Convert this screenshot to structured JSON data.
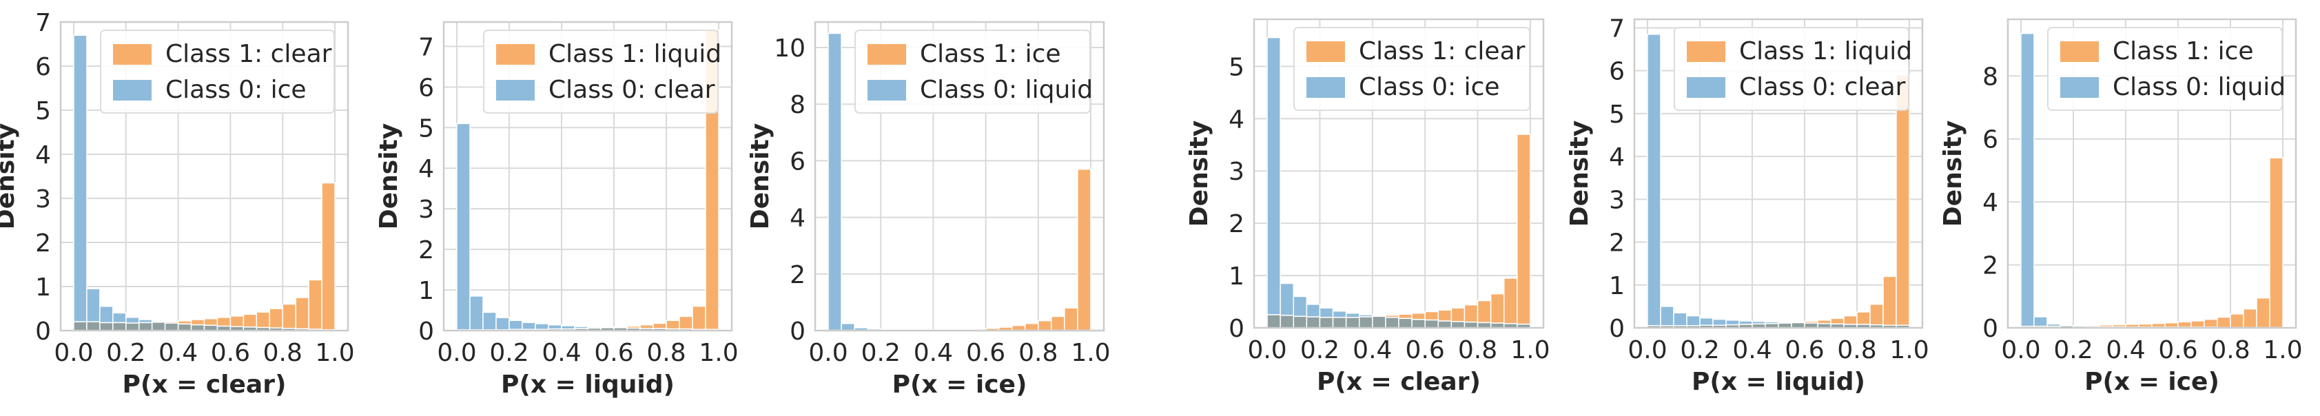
{
  "colors": {
    "class1": "#f7ae6b",
    "class0": "#8ebbdb",
    "overlap": "#8f9f9f",
    "grid": "#d9d9d9",
    "frame": "#cccccc"
  },
  "chart_data": [
    {
      "type": "bar",
      "title": "",
      "xlabel": "P(x = clear)",
      "ylabel": "Density",
      "xlim": [
        0.0,
        1.0
      ],
      "ylim": [
        0,
        7
      ],
      "xticks": [
        "0.0",
        "0.2",
        "0.4",
        "0.6",
        "0.8",
        "1.0"
      ],
      "yticks": [
        "0",
        "1",
        "2",
        "3",
        "4",
        "5",
        "6",
        "7"
      ],
      "legend": [
        "Class 1: clear",
        "Class 0: ice"
      ],
      "bins": 20,
      "series": [
        {
          "name": "Class 1: clear",
          "values": [
            0.2,
            0.2,
            0.18,
            0.18,
            0.17,
            0.18,
            0.19,
            0.2,
            0.22,
            0.25,
            0.27,
            0.3,
            0.33,
            0.37,
            0.42,
            0.5,
            0.6,
            0.75,
            1.15,
            3.35
          ]
        },
        {
          "name": "Class 0: ice",
          "values": [
            6.7,
            0.95,
            0.55,
            0.4,
            0.3,
            0.25,
            0.2,
            0.17,
            0.15,
            0.13,
            0.12,
            0.1,
            0.09,
            0.08,
            0.07,
            0.06,
            0.05,
            0.04,
            0.03,
            0.02
          ]
        }
      ]
    },
    {
      "type": "bar",
      "title": "",
      "xlabel": "P(x = liquid)",
      "ylabel": "Density",
      "xlim": [
        0.0,
        1.0
      ],
      "ylim": [
        0,
        7.6
      ],
      "xticks": [
        "0.0",
        "0.2",
        "0.4",
        "0.6",
        "0.8",
        "1.0"
      ],
      "yticks": [
        "0",
        "1",
        "2",
        "3",
        "4",
        "5",
        "6",
        "7"
      ],
      "legend": [
        "Class 1: liquid",
        "Class 0: clear"
      ],
      "bins": 20,
      "series": [
        {
          "name": "Class 1: liquid",
          "values": [
            0.02,
            0.02,
            0.02,
            0.02,
            0.03,
            0.03,
            0.03,
            0.04,
            0.04,
            0.05,
            0.06,
            0.07,
            0.09,
            0.11,
            0.14,
            0.18,
            0.25,
            0.35,
            0.6,
            7.4
          ]
        },
        {
          "name": "Class 0: clear",
          "values": [
            5.1,
            0.85,
            0.45,
            0.32,
            0.25,
            0.2,
            0.17,
            0.14,
            0.12,
            0.1,
            0.09,
            0.08,
            0.07,
            0.06,
            0.05,
            0.05,
            0.04,
            0.04,
            0.03,
            0.03
          ]
        }
      ]
    },
    {
      "type": "bar",
      "title": "",
      "xlabel": "P(x = ice)",
      "ylabel": "Density",
      "xlim": [
        0.0,
        1.0
      ],
      "ylim": [
        0,
        10.9
      ],
      "xticks": [
        "0.0",
        "0.2",
        "0.4",
        "0.6",
        "0.8",
        "1.0"
      ],
      "yticks": [
        "0",
        "2",
        "4",
        "6",
        "8",
        "10"
      ],
      "legend": [
        "Class 1: ice",
        "Class 0: liquid"
      ],
      "bins": 20,
      "series": [
        {
          "name": "Class 1: ice",
          "values": [
            0.01,
            0.01,
            0.01,
            0.01,
            0.01,
            0.01,
            0.01,
            0.01,
            0.01,
            0.02,
            0.03,
            0.05,
            0.08,
            0.12,
            0.18,
            0.25,
            0.35,
            0.5,
            0.8,
            5.7
          ]
        },
        {
          "name": "Class 0: liquid",
          "values": [
            10.5,
            0.25,
            0.1,
            0.06,
            0.04,
            0.03,
            0.02,
            0.02,
            0.01,
            0.01,
            0.01,
            0.01,
            0.01,
            0.01,
            0.01,
            0.01,
            0.01,
            0.01,
            0.01,
            0.01
          ]
        }
      ]
    },
    {
      "type": "bar",
      "title": "",
      "xlabel": "P(x = clear)",
      "ylabel": "Density",
      "xlim": [
        0.0,
        1.0
      ],
      "ylim": [
        0,
        5.9
      ],
      "xticks": [
        "0.0",
        "0.2",
        "0.4",
        "0.6",
        "0.8",
        "1.0"
      ],
      "yticks": [
        "0",
        "1",
        "2",
        "3",
        "4",
        "5"
      ],
      "legend": [
        "Class 1: clear",
        "Class 0: ice"
      ],
      "bins": 20,
      "series": [
        {
          "name": "Class 1: clear",
          "values": [
            0.25,
            0.24,
            0.22,
            0.21,
            0.2,
            0.2,
            0.2,
            0.21,
            0.22,
            0.24,
            0.26,
            0.28,
            0.31,
            0.34,
            0.38,
            0.44,
            0.52,
            0.65,
            0.95,
            3.7
          ]
        },
        {
          "name": "Class 0: ice",
          "values": [
            5.55,
            0.85,
            0.6,
            0.45,
            0.38,
            0.32,
            0.28,
            0.25,
            0.22,
            0.2,
            0.18,
            0.16,
            0.15,
            0.13,
            0.12,
            0.11,
            0.1,
            0.09,
            0.08,
            0.07
          ]
        }
      ]
    },
    {
      "type": "bar",
      "title": "",
      "xlabel": "P(x = liquid)",
      "ylabel": "Density",
      "xlim": [
        0.0,
        1.0
      ],
      "ylim": [
        0,
        7.2
      ],
      "xticks": [
        "0.0",
        "0.2",
        "0.4",
        "0.6",
        "0.8",
        "1.0"
      ],
      "yticks": [
        "0",
        "1",
        "2",
        "3",
        "4",
        "5",
        "6",
        "7"
      ],
      "legend": [
        "Class 1: liquid",
        "Class 0: clear"
      ],
      "bins": 20,
      "series": [
        {
          "name": "Class 1: liquid",
          "values": [
            0.05,
            0.05,
            0.05,
            0.05,
            0.06,
            0.06,
            0.07,
            0.08,
            0.09,
            0.1,
            0.11,
            0.13,
            0.15,
            0.18,
            0.22,
            0.28,
            0.37,
            0.55,
            1.2,
            5.9
          ]
        },
        {
          "name": "Class 0: clear",
          "values": [
            6.85,
            0.5,
            0.35,
            0.28,
            0.23,
            0.2,
            0.18,
            0.16,
            0.15,
            0.14,
            0.13,
            0.12,
            0.11,
            0.1,
            0.09,
            0.08,
            0.08,
            0.07,
            0.06,
            0.06
          ]
        }
      ]
    },
    {
      "type": "bar",
      "title": "",
      "xlabel": "P(x = ice)",
      "ylabel": "Density",
      "xlim": [
        0.0,
        1.0
      ],
      "ylim": [
        0,
        9.8
      ],
      "xticks": [
        "0.0",
        "0.2",
        "0.4",
        "0.6",
        "0.8",
        "1.0"
      ],
      "yticks": [
        "0",
        "2",
        "4",
        "6",
        "8"
      ],
      "legend": [
        "Class 1: ice",
        "Class 0: liquid"
      ],
      "bins": 20,
      "series": [
        {
          "name": "Class 1: ice",
          "values": [
            0.05,
            0.05,
            0.05,
            0.06,
            0.07,
            0.08,
            0.09,
            0.1,
            0.11,
            0.12,
            0.14,
            0.16,
            0.19,
            0.22,
            0.27,
            0.34,
            0.44,
            0.6,
            0.95,
            5.4
          ]
        },
        {
          "name": "Class 0: liquid",
          "values": [
            9.35,
            0.35,
            0.12,
            0.07,
            0.05,
            0.04,
            0.03,
            0.03,
            0.02,
            0.02,
            0.02,
            0.02,
            0.02,
            0.02,
            0.02,
            0.01,
            0.01,
            0.01,
            0.01,
            0.01
          ]
        }
      ]
    }
  ]
}
